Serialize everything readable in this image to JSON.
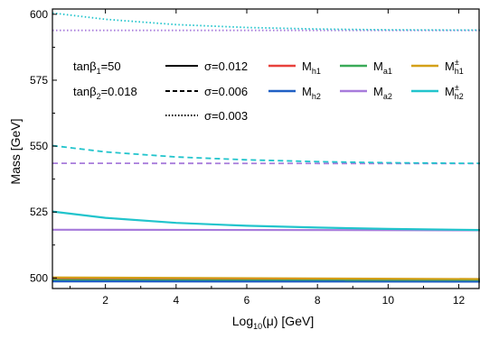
{
  "chart_data": {
    "type": "line",
    "xlabel": "Log10(μ) [GeV]",
    "ylabel": "Mass [GeV]",
    "xlim": [
      0.5,
      12.6
    ],
    "ylim": [
      496,
      602
    ],
    "xticks": [
      2,
      4,
      6,
      8,
      10,
      12
    ],
    "yticks": [
      500,
      525,
      550,
      575,
      600
    ],
    "grid": false,
    "annotations": [
      "tanβ1=50",
      "tanβ2=0.018"
    ],
    "legend": {
      "placement": "top",
      "colors": [
        {
          "label": "M",
          "sub": "h1",
          "sup": "",
          "color": "#e8413c"
        },
        {
          "label": "M",
          "sub": "a1",
          "sup": "",
          "color": "#3aaa58"
        },
        {
          "label": "M",
          "sub": "h1",
          "sup": "±",
          "color": "#d4a017"
        },
        {
          "label": "M",
          "sub": "h2",
          "sup": "",
          "color": "#1f5fc4"
        },
        {
          "label": "M",
          "sub": "a2",
          "sup": "",
          "color": "#a77bdb"
        },
        {
          "label": "M",
          "sub": "h2",
          "sup": "±",
          "color": "#21c4cc"
        }
      ],
      "styles": [
        {
          "label": "σ=0.012",
          "dash": "solid"
        },
        {
          "label": "σ=0.006",
          "dash": "dashed"
        },
        {
          "label": "σ=0.003",
          "dash": "dotted"
        }
      ]
    },
    "series": [
      {
        "color": "#e8413c",
        "dash": "solid",
        "x": [
          0.5,
          12.6
        ],
        "y": [
          499.8,
          499.3
        ]
      },
      {
        "color": "#3aaa58",
        "dash": "solid",
        "x": [
          0.5,
          12.6
        ],
        "y": [
          499.2,
          498.9
        ]
      },
      {
        "color": "#d4a017",
        "dash": "solid",
        "x": [
          0.5,
          12.6
        ],
        "y": [
          500.2,
          499.6
        ]
      },
      {
        "color": "#1f5fc4",
        "dash": "solid",
        "x": [
          0.5,
          12.6
        ],
        "y": [
          498.7,
          498.6
        ]
      },
      {
        "color": "#a77bdb",
        "dash": "solid",
        "x": [
          0.5,
          12.6
        ],
        "y": [
          518.3,
          518.1
        ]
      },
      {
        "color": "#21c4cc",
        "dash": "solid",
        "x": [
          0.5,
          2,
          4,
          6,
          8,
          10,
          12,
          12.6
        ],
        "y": [
          525.2,
          522.8,
          520.9,
          519.8,
          519.1,
          518.6,
          518.3,
          518.2
        ]
      },
      {
        "color": "#a77bdb",
        "dash": "dashed",
        "x": [
          0.5,
          12.6
        ],
        "y": [
          543.5,
          543.4
        ]
      },
      {
        "color": "#21c4cc",
        "dash": "dashed",
        "x": [
          0.5,
          2,
          4,
          6,
          8,
          10,
          12,
          12.6
        ],
        "y": [
          550.2,
          547.8,
          545.9,
          544.8,
          544.1,
          543.7,
          543.5,
          543.5
        ]
      },
      {
        "color": "#a77bdb",
        "dash": "dotted",
        "x": [
          0.5,
          12.6
        ],
        "y": [
          593.9,
          593.9
        ]
      },
      {
        "color": "#21c4cc",
        "dash": "dotted",
        "x": [
          0.5,
          2,
          4,
          6,
          8,
          10,
          12,
          12.6
        ],
        "y": [
          600.5,
          598.1,
          596.1,
          595.0,
          594.4,
          594.1,
          594.0,
          594.0
        ]
      }
    ]
  }
}
